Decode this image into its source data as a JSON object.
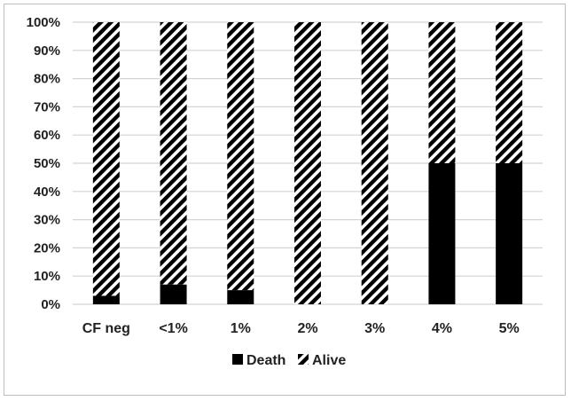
{
  "chart_data": {
    "type": "bar",
    "stacked": true,
    "percent_stacked": true,
    "categories": [
      "CF neg",
      "<1%",
      "1%",
      "2%",
      "3%",
      "4%",
      "5%"
    ],
    "series": [
      {
        "name": "Death",
        "values": [
          3,
          7,
          5,
          0,
          0,
          50,
          50
        ],
        "fill": "solid",
        "color": "#000000"
      },
      {
        "name": "Alive",
        "values": [
          97,
          93,
          95,
          100,
          100,
          50,
          50
        ],
        "fill": "diagonal-hatch",
        "color": "#000000"
      }
    ],
    "y_ticks": [
      "0%",
      "10%",
      "20%",
      "30%",
      "40%",
      "50%",
      "60%",
      "70%",
      "80%",
      "90%",
      "100%"
    ],
    "ylim": [
      0,
      100
    ],
    "grid": true,
    "legend": "bottom-center"
  }
}
